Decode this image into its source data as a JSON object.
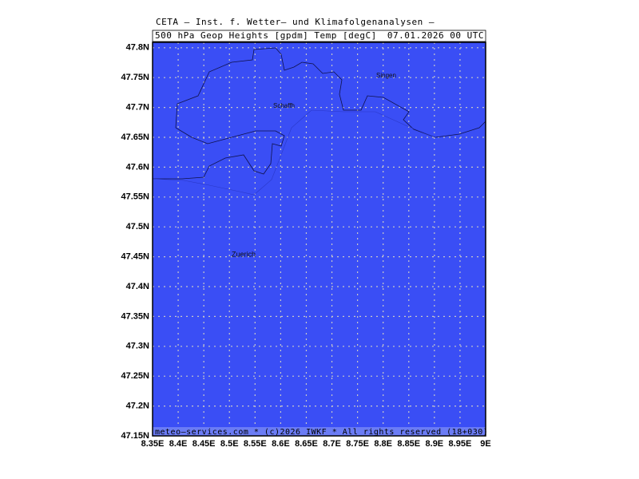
{
  "header": {
    "line1": "CETA — Inst. f. Wetter— und Klimafolgenanalysen —",
    "field": "500 hPa Geop Heights [gpdm] Temp [degC]",
    "valid": "07.01.2026 00 UTC"
  },
  "map": {
    "lat_labels": [
      "47.8N",
      "47.75N",
      "47.7N",
      "47.65N",
      "47.6N",
      "47.55N",
      "47.5N",
      "47.45N",
      "47.4N",
      "47.35N",
      "47.3N",
      "47.25N",
      "47.2N",
      "47.15N"
    ],
    "lon_labels": [
      "8.35E",
      "8.4E",
      "8.45E",
      "8.5E",
      "8.55E",
      "8.6E",
      "8.65E",
      "8.7E",
      "8.75E",
      "8.8E",
      "8.85E",
      "8.9E",
      "8.95E",
      "9E"
    ],
    "places": [
      "Singen",
      "Schaffh",
      "Zuerich"
    ]
  },
  "footer": "meteo—services.com * (c)2026 IWKF * All rights reserved (18+030)"
}
